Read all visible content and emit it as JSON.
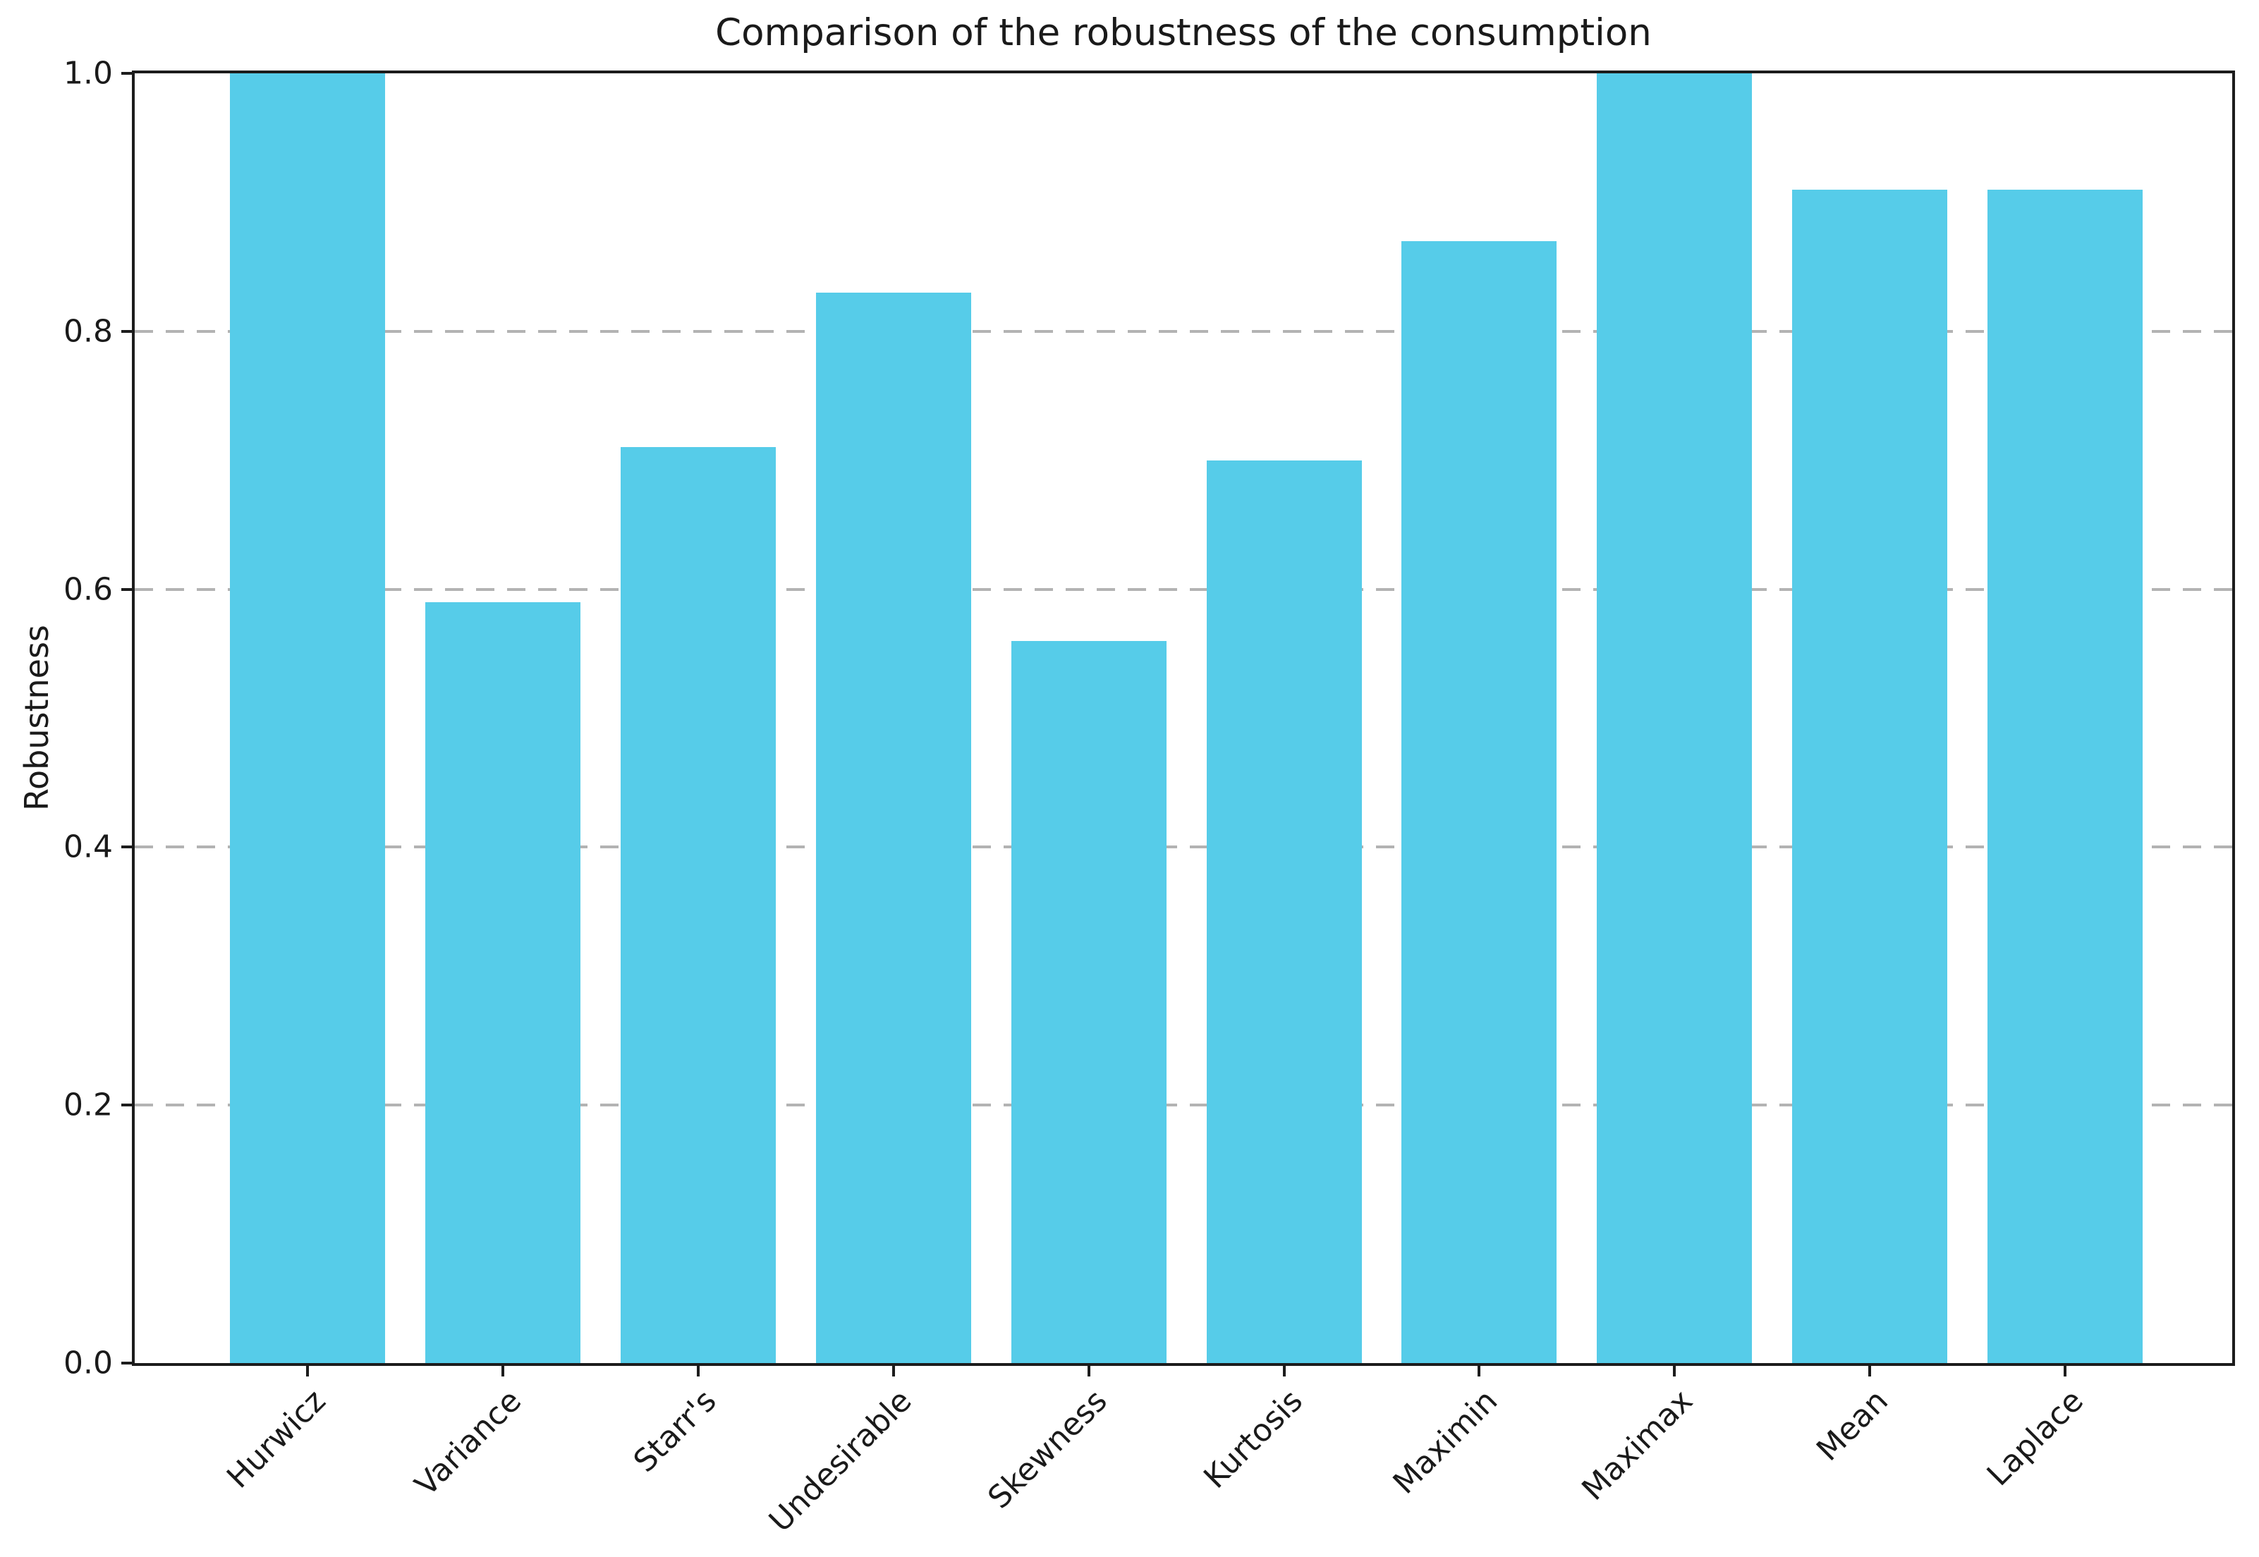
{
  "chart_data": {
    "type": "bar",
    "title": "Comparison of the robustness of the consumption",
    "xlabel": "",
    "ylabel": "Robustness",
    "categories": [
      "Hurwicz",
      "Variance",
      "Starr's",
      "Undesirable",
      "Skewness",
      "Kurtosis",
      "Maximin",
      "Maximax",
      "Mean",
      "Laplace"
    ],
    "values": [
      1.0,
      0.59,
      0.71,
      0.83,
      0.56,
      0.7,
      0.87,
      1.0,
      0.91,
      0.91
    ],
    "ylim": [
      0.0,
      1.0
    ],
    "yticks": [
      0.0,
      0.2,
      0.4,
      0.6,
      0.8,
      1.0
    ],
    "ytick_labels": [
      "0.0",
      "0.2",
      "0.4",
      "0.6",
      "0.8",
      "1.0"
    ],
    "x_tick_rotation_deg": 45,
    "grid": "horizontal-dashed",
    "legend": "none",
    "bar_color": "#56cce9",
    "grid_color": "#b3b3b3",
    "spine_color": "#1c1c1c",
    "text_color": "#1a1a1a"
  }
}
